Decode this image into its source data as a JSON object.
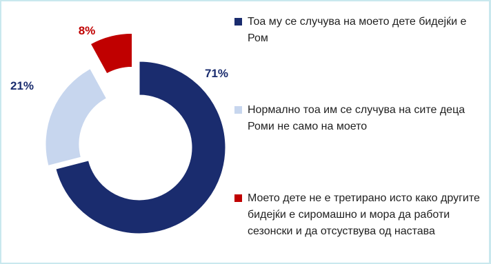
{
  "chart_data": {
    "type": "pie",
    "variant": "donut",
    "categories": [
      "Тоа му се случува на моето дете бидејќи е Ром",
      "Нормално тоа им се случува на сите деца  Роми не само на моето",
      "Моето дете не е третирано исто како другите бидејќи е сиромашно и мора да работи сезонски и да отсуствува од настава"
    ],
    "values": [
      71,
      21,
      8
    ],
    "value_labels": [
      "71%",
      "21%",
      "8%"
    ],
    "colors": [
      "#1a2c6e",
      "#c7d6ee",
      "#c00000"
    ],
    "legend_position": "right"
  }
}
